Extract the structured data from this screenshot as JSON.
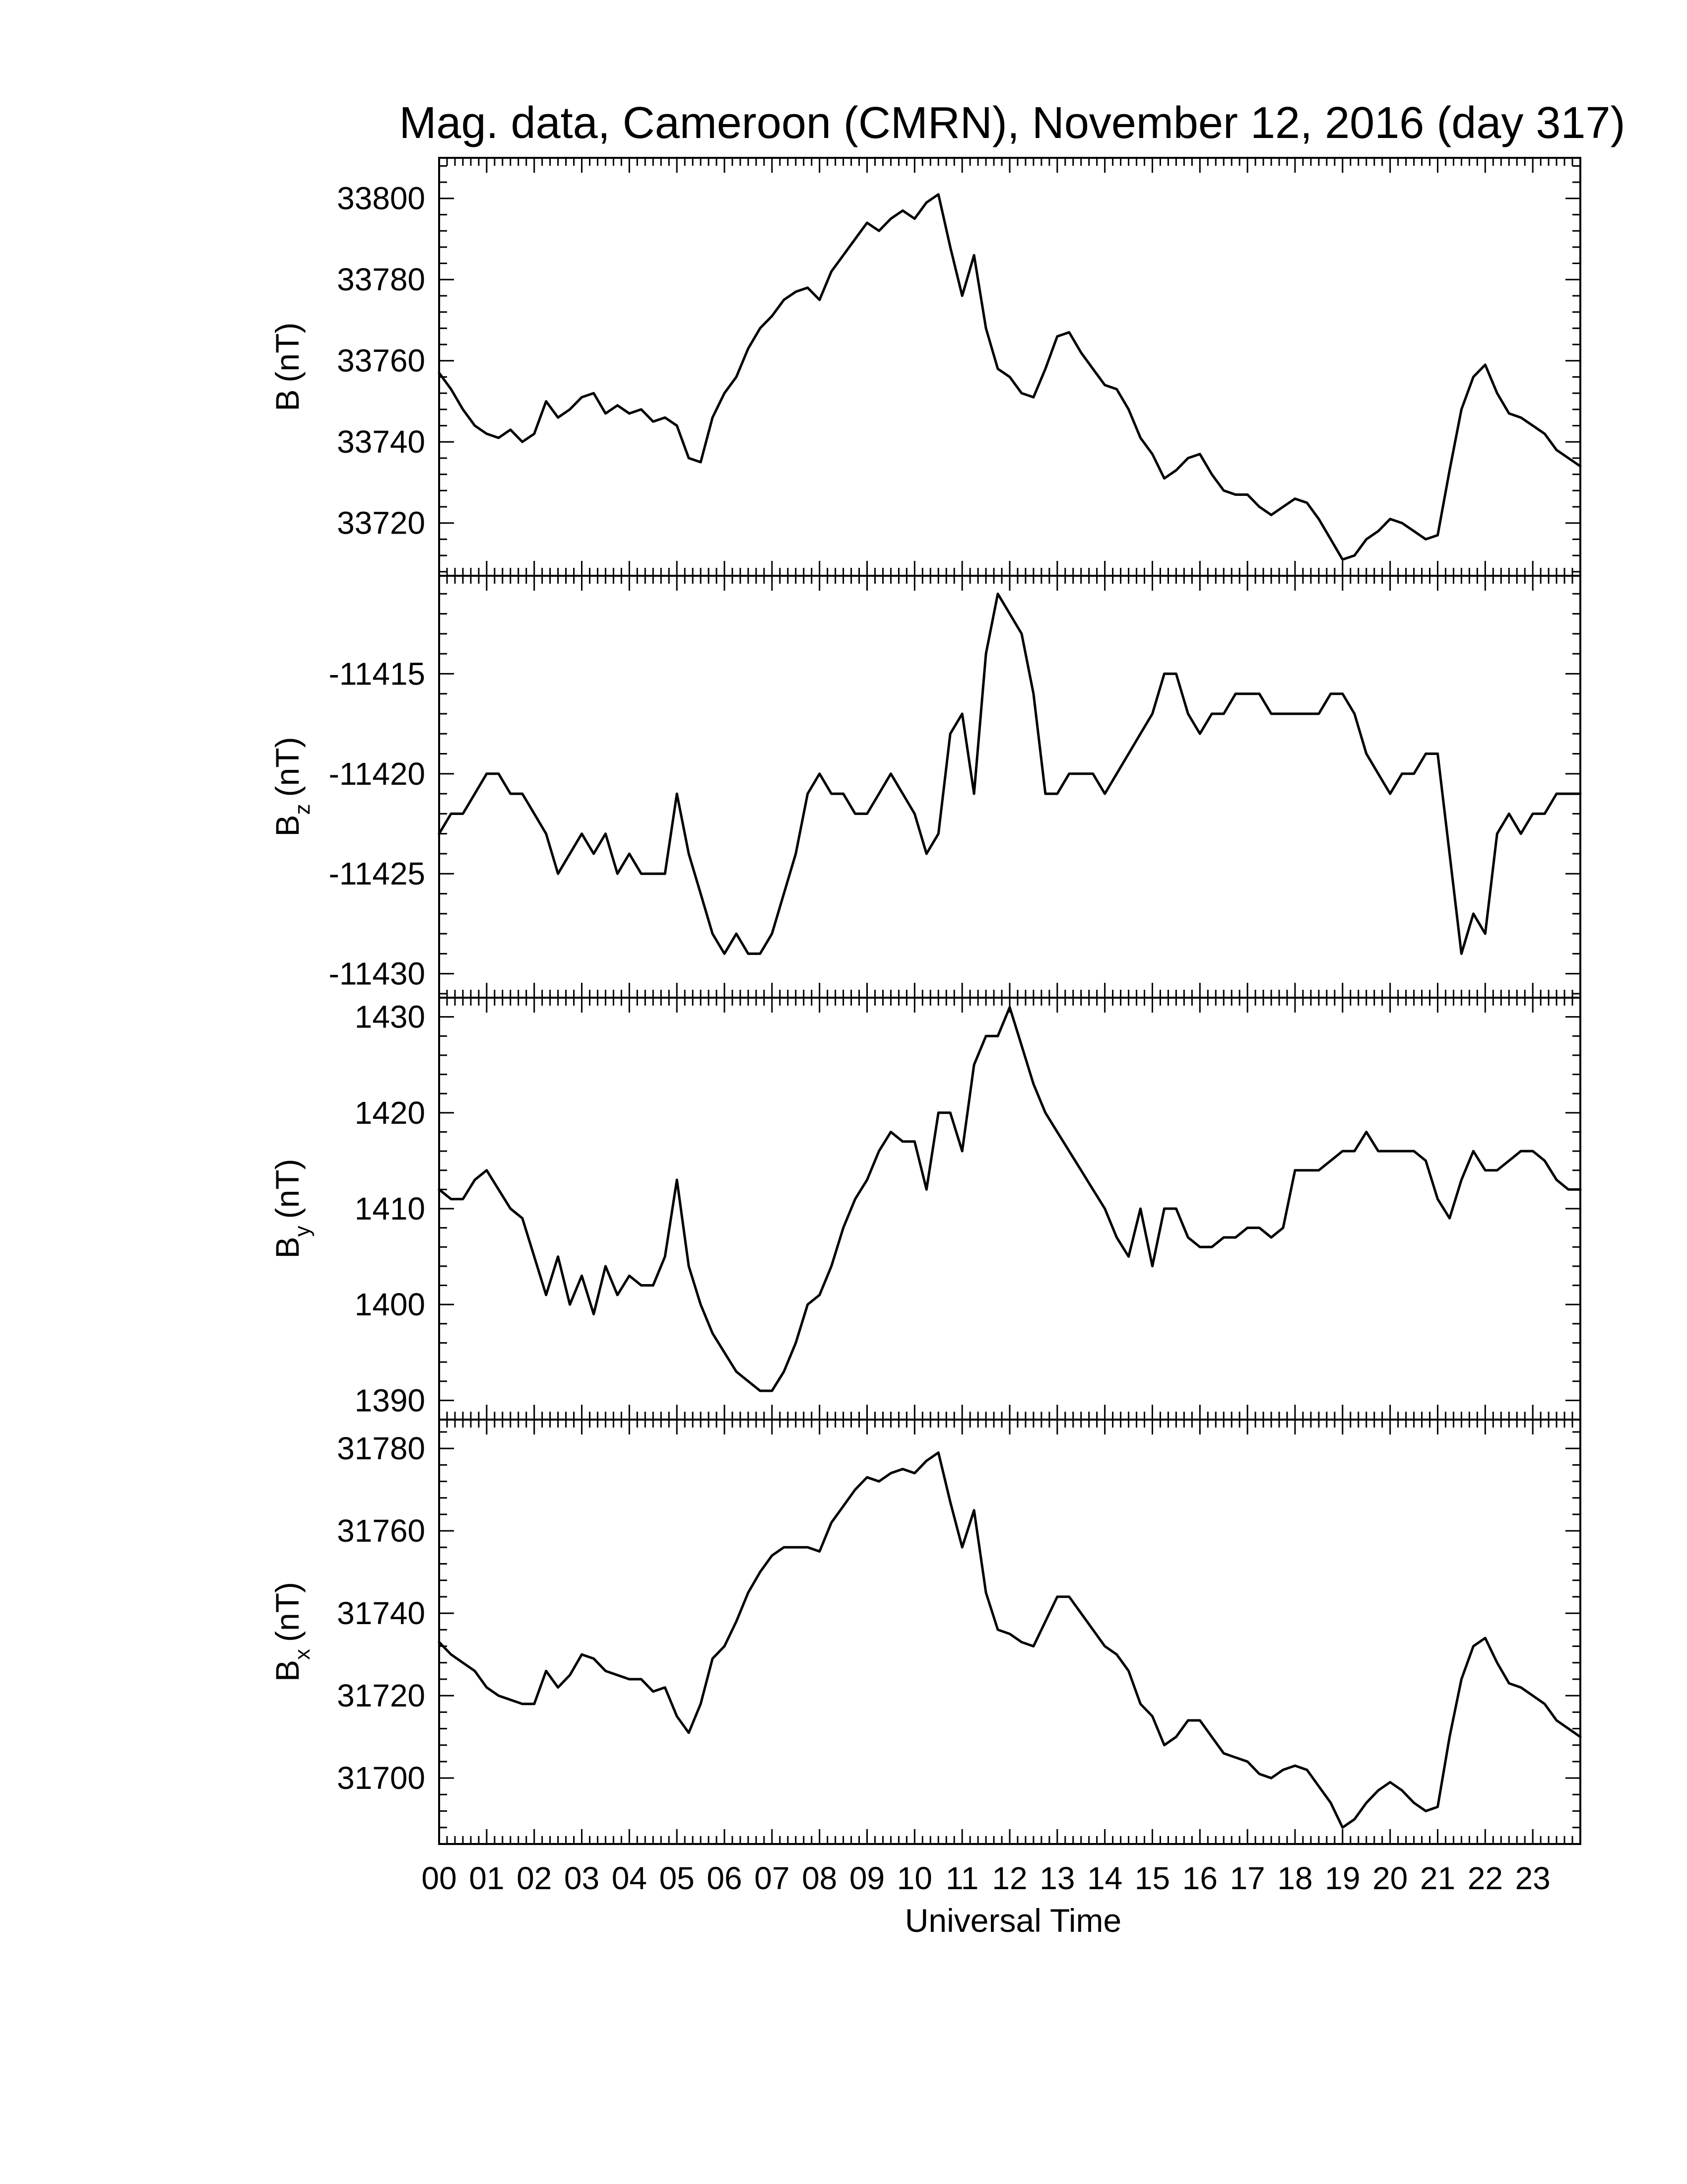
{
  "chart_data": {
    "title": "Mag. data, Cameroon (CMRN), November 12, 2016 (day 317)",
    "xlabel": "Universal Time",
    "x_tick_labels": [
      "00",
      "01",
      "02",
      "03",
      "04",
      "05",
      "06",
      "07",
      "08",
      "09",
      "10",
      "11",
      "12",
      "13",
      "14",
      "15",
      "16",
      "17",
      "18",
      "19",
      "20",
      "21",
      "22",
      "23"
    ],
    "xlim": [
      0,
      24
    ],
    "panels": [
      {
        "type": "line",
        "ylabel_main": "B",
        "ylabel_sub": "",
        "ylabel_unit": "(nT)",
        "ylim": [
          33707,
          33810
        ],
        "yticks": [
          33720,
          33740,
          33760,
          33780,
          33800
        ],
        "ytick_labels": [
          "33720",
          "33740",
          "33760",
          "33780",
          "33800"
        ],
        "x": [
          0,
          0.25,
          0.5,
          0.75,
          1,
          1.25,
          1.5,
          1.75,
          2,
          2.25,
          2.5,
          2.75,
          3,
          3.25,
          3.5,
          3.75,
          4,
          4.25,
          4.5,
          4.75,
          5,
          5.25,
          5.5,
          5.75,
          6,
          6.25,
          6.5,
          6.75,
          7,
          7.25,
          7.5,
          7.75,
          8,
          8.25,
          8.5,
          8.75,
          9,
          9.25,
          9.5,
          9.75,
          10,
          10.25,
          10.5,
          10.75,
          11,
          11.25,
          11.5,
          11.75,
          12,
          12.25,
          12.5,
          12.75,
          13,
          13.25,
          13.5,
          13.75,
          14,
          14.25,
          14.5,
          14.75,
          15,
          15.25,
          15.5,
          15.75,
          16,
          16.25,
          16.5,
          16.75,
          17,
          17.25,
          17.5,
          17.75,
          18,
          18.25,
          18.5,
          18.75,
          19,
          19.25,
          19.5,
          19.75,
          20,
          20.25,
          20.5,
          20.75,
          21,
          21.25,
          21.5,
          21.75,
          22,
          22.25,
          22.5,
          22.75,
          23,
          23.25,
          23.5,
          23.75,
          24
        ],
        "values": [
          33757,
          33753,
          33748,
          33744,
          33742,
          33741,
          33743,
          33740,
          33742,
          33750,
          33746,
          33748,
          33751,
          33752,
          33747,
          33749,
          33747,
          33748,
          33745,
          33746,
          33744,
          33736,
          33735,
          33746,
          33752,
          33756,
          33763,
          33768,
          33771,
          33775,
          33777,
          33778,
          33775,
          33782,
          33786,
          33790,
          33794,
          33792,
          33795,
          33797,
          33795,
          33799,
          33801,
          33788,
          33776,
          33786,
          33768,
          33758,
          33756,
          33752,
          33751,
          33758,
          33766,
          33767,
          33762,
          33758,
          33754,
          33753,
          33748,
          33741,
          33737,
          33731,
          33733,
          33736,
          33737,
          33732,
          33728,
          33727,
          33727,
          33724,
          33722,
          33724,
          33726,
          33725,
          33721,
          33716,
          33711,
          33712,
          33716,
          33718,
          33721,
          33720,
          33718,
          33716,
          33717,
          33733,
          33748,
          33756,
          33759,
          33752,
          33747,
          33746,
          33744,
          33742,
          33738,
          33736,
          33734
        ]
      },
      {
        "type": "line",
        "ylabel_main": "B",
        "ylabel_sub": "z",
        "ylabel_unit": "(nT)",
        "ylim": [
          -11431.2,
          -11410.1
        ],
        "yticks": [
          -11430,
          -11425,
          -11420,
          -11415
        ],
        "ytick_labels": [
          "-11430",
          "-11425",
          "-11420",
          "-11415"
        ],
        "x": [
          0,
          0.25,
          0.5,
          0.75,
          1,
          1.25,
          1.5,
          1.75,
          2,
          2.25,
          2.5,
          2.75,
          3,
          3.25,
          3.5,
          3.75,
          4,
          4.25,
          4.5,
          4.75,
          5,
          5.25,
          5.5,
          5.75,
          6,
          6.25,
          6.5,
          6.75,
          7,
          7.25,
          7.5,
          7.75,
          8,
          8.25,
          8.5,
          8.75,
          9,
          9.25,
          9.5,
          9.75,
          10,
          10.25,
          10.5,
          10.75,
          11,
          11.25,
          11.5,
          11.75,
          12,
          12.25,
          12.5,
          12.75,
          13,
          13.25,
          13.5,
          13.75,
          14,
          14.25,
          14.5,
          14.75,
          15,
          15.25,
          15.5,
          15.75,
          16,
          16.25,
          16.5,
          16.75,
          17,
          17.25,
          17.5,
          17.75,
          18,
          18.25,
          18.5,
          18.75,
          19,
          19.25,
          19.5,
          19.75,
          20,
          20.25,
          20.5,
          20.75,
          21,
          21.25,
          21.5,
          21.75,
          22,
          22.25,
          22.5,
          22.75,
          23,
          23.25,
          23.5,
          23.75,
          24
        ],
        "values": [
          -11423,
          -11422,
          -11422,
          -11421,
          -11420,
          -11420,
          -11421,
          -11421,
          -11422,
          -11423,
          -11425,
          -11424,
          -11423,
          -11424,
          -11423,
          -11425,
          -11424,
          -11425,
          -11425,
          -11425,
          -11421,
          -11424,
          -11426,
          -11428,
          -11429,
          -11428,
          -11429,
          -11429,
          -11428,
          -11426,
          -11424,
          -11421,
          -11420,
          -11421,
          -11421,
          -11422,
          -11422,
          -11421,
          -11420,
          -11421,
          -11422,
          -11424,
          -11423,
          -11418,
          -11417,
          -11421,
          -11414,
          -11411,
          -11412,
          -11413,
          -11416,
          -11421,
          -11421,
          -11420,
          -11420,
          -11420,
          -11421,
          -11420,
          -11419,
          -11418,
          -11417,
          -11415,
          -11415,
          -11417,
          -11418,
          -11417,
          -11417,
          -11416,
          -11416,
          -11416,
          -11417,
          -11417,
          -11417,
          -11417,
          -11417,
          -11416,
          -11416,
          -11417,
          -11419,
          -11420,
          -11421,
          -11420,
          -11420,
          -11419,
          -11419,
          -11424,
          -11429,
          -11427,
          -11428,
          -11423,
          -11422,
          -11423,
          -11422,
          -11422,
          -11421,
          -11421,
          -11421
        ]
      },
      {
        "type": "line",
        "ylabel_main": "B",
        "ylabel_sub": "y",
        "ylabel_unit": "(nT)",
        "ylim": [
          1388,
          1432
        ],
        "yticks": [
          1390,
          1400,
          1410,
          1420,
          1430
        ],
        "ytick_labels": [
          "1390",
          "1400",
          "1410",
          "1420",
          "1430"
        ],
        "x": [
          0,
          0.25,
          0.5,
          0.75,
          1,
          1.25,
          1.5,
          1.75,
          2,
          2.25,
          2.5,
          2.75,
          3,
          3.25,
          3.5,
          3.75,
          4,
          4.25,
          4.5,
          4.75,
          5,
          5.25,
          5.5,
          5.75,
          6,
          6.25,
          6.5,
          6.75,
          7,
          7.25,
          7.5,
          7.75,
          8,
          8.25,
          8.5,
          8.75,
          9,
          9.25,
          9.5,
          9.75,
          10,
          10.25,
          10.5,
          10.75,
          11,
          11.25,
          11.5,
          11.75,
          12,
          12.25,
          12.5,
          12.75,
          13,
          13.25,
          13.5,
          13.75,
          14,
          14.25,
          14.5,
          14.75,
          15,
          15.25,
          15.5,
          15.75,
          16,
          16.25,
          16.5,
          16.75,
          17,
          17.25,
          17.5,
          17.75,
          18,
          18.25,
          18.5,
          18.75,
          19,
          19.25,
          19.5,
          19.75,
          20,
          20.25,
          20.5,
          20.75,
          21,
          21.25,
          21.5,
          21.75,
          22,
          22.25,
          22.5,
          22.75,
          23,
          23.25,
          23.5,
          23.75,
          24
        ],
        "values": [
          1412,
          1411,
          1411,
          1413,
          1414,
          1412,
          1410,
          1409,
          1405,
          1401,
          1405,
          1400,
          1403,
          1399,
          1404,
          1401,
          1403,
          1402,
          1402,
          1405,
          1413,
          1404,
          1400,
          1397,
          1395,
          1393,
          1392,
          1391,
          1391,
          1393,
          1396,
          1400,
          1401,
          1404,
          1408,
          1411,
          1413,
          1416,
          1418,
          1417,
          1417,
          1412,
          1420,
          1420,
          1416,
          1425,
          1428,
          1428,
          1431,
          1427,
          1423,
          1420,
          1418,
          1416,
          1414,
          1412,
          1410,
          1407,
          1405,
          1410,
          1404,
          1410,
          1410,
          1407,
          1406,
          1406,
          1407,
          1407,
          1408,
          1408,
          1407,
          1408,
          1414,
          1414,
          1414,
          1415,
          1416,
          1416,
          1418,
          1416,
          1416,
          1416,
          1416,
          1415,
          1411,
          1409,
          1413,
          1416,
          1414,
          1414,
          1415,
          1416,
          1416,
          1415,
          1413,
          1412,
          1412
        ]
      },
      {
        "type": "line",
        "ylabel_main": "B",
        "ylabel_sub": "x",
        "ylabel_unit": "(nT)",
        "ylim": [
          31684,
          31787
        ],
        "yticks": [
          31700,
          31720,
          31740,
          31760,
          31780
        ],
        "ytick_labels": [
          "31700",
          "31720",
          "31740",
          "31760",
          "31780"
        ],
        "x": [
          0,
          0.25,
          0.5,
          0.75,
          1,
          1.25,
          1.5,
          1.75,
          2,
          2.25,
          2.5,
          2.75,
          3,
          3.25,
          3.5,
          3.75,
          4,
          4.25,
          4.5,
          4.75,
          5,
          5.25,
          5.5,
          5.75,
          6,
          6.25,
          6.5,
          6.75,
          7,
          7.25,
          7.5,
          7.75,
          8,
          8.25,
          8.5,
          8.75,
          9,
          9.25,
          9.5,
          9.75,
          10,
          10.25,
          10.5,
          10.75,
          11,
          11.25,
          11.5,
          11.75,
          12,
          12.25,
          12.5,
          12.75,
          13,
          13.25,
          13.5,
          13.75,
          14,
          14.25,
          14.5,
          14.75,
          15,
          15.25,
          15.5,
          15.75,
          16,
          16.25,
          16.5,
          16.75,
          17,
          17.25,
          17.5,
          17.75,
          18,
          18.25,
          18.5,
          18.75,
          19,
          19.25,
          19.5,
          19.75,
          20,
          20.25,
          20.5,
          20.75,
          21,
          21.25,
          21.5,
          21.75,
          22,
          22.25,
          22.5,
          22.75,
          23,
          23.25,
          23.5,
          23.75,
          24
        ],
        "values": [
          31733,
          31730,
          31728,
          31726,
          31722,
          31720,
          31719,
          31718,
          31718,
          31726,
          31722,
          31725,
          31730,
          31729,
          31726,
          31725,
          31724,
          31724,
          31721,
          31722,
          31715,
          31711,
          31718,
          31729,
          31732,
          31738,
          31745,
          31750,
          31754,
          31756,
          31756,
          31756,
          31755,
          31762,
          31766,
          31770,
          31773,
          31772,
          31774,
          31775,
          31774,
          31777,
          31779,
          31767,
          31756,
          31765,
          31745,
          31736,
          31735,
          31733,
          31732,
          31738,
          31744,
          31744,
          31740,
          31736,
          31732,
          31730,
          31726,
          31718,
          31715,
          31708,
          31710,
          31714,
          31714,
          31710,
          31706,
          31705,
          31704,
          31701,
          31700,
          31702,
          31703,
          31702,
          31698,
          31694,
          31688,
          31690,
          31694,
          31697,
          31699,
          31697,
          31694,
          31692,
          31693,
          31710,
          31724,
          31732,
          31734,
          31728,
          31723,
          31722,
          31720,
          31718,
          31714,
          31712,
          31710
        ]
      }
    ]
  }
}
